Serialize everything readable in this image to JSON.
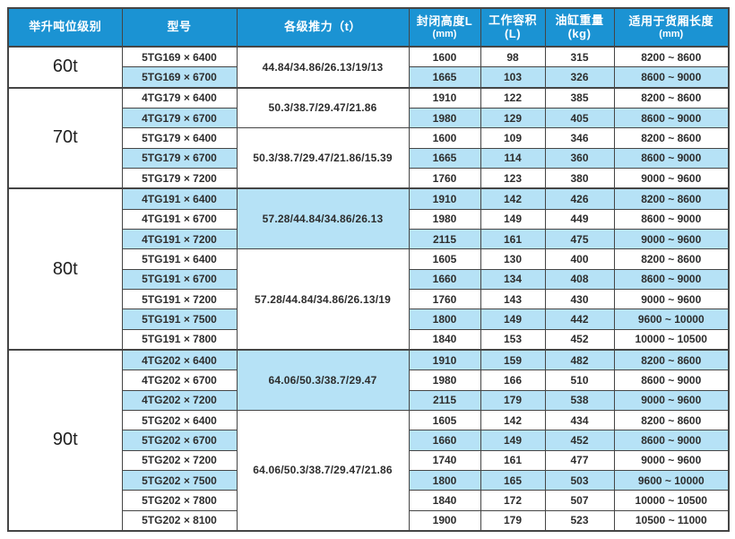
{
  "colors": {
    "header_bg": "#1b93d3",
    "header_text": "#ffffff",
    "row_highlight": "#b6e2f6",
    "border": "#454545",
    "text": "#2d2d2d",
    "page_bg": "#ffffff"
  },
  "table": {
    "columns": [
      {
        "label": "举升吨位级别",
        "sub": ""
      },
      {
        "label": "型号",
        "sub": ""
      },
      {
        "label": "各级推力（t）",
        "sub": ""
      },
      {
        "label": "封闭高度L",
        "sub": "(mm)"
      },
      {
        "label": "工作容积(L)",
        "sub": ""
      },
      {
        "label": "油缸重量(kg)",
        "sub": ""
      },
      {
        "label": "适用于货厢长度",
        "sub": "(mm)"
      }
    ],
    "groups": [
      {
        "tonnage": "60t",
        "subgroups": [
          {
            "thrust": "44.84/34.86/26.13/19/13",
            "thrust_highlight": false,
            "rows": [
              {
                "model": "5TG169 × 6400",
                "highlight": false,
                "values": [
                  "1600",
                  "98",
                  "315",
                  "8200 ~ 8600"
                ]
              },
              {
                "model": "5TG169 × 6700",
                "highlight": true,
                "values": [
                  "1665",
                  "103",
                  "326",
                  "8600 ~ 9000"
                ]
              }
            ]
          }
        ]
      },
      {
        "tonnage": "70t",
        "subgroups": [
          {
            "thrust": "50.3/38.7/29.47/21.86",
            "thrust_highlight": false,
            "rows": [
              {
                "model": "4TG179 × 6400",
                "highlight": false,
                "values": [
                  "1910",
                  "122",
                  "385",
                  "8200 ~ 8600"
                ]
              },
              {
                "model": "4TG179 × 6700",
                "highlight": true,
                "values": [
                  "1980",
                  "129",
                  "405",
                  "8600 ~ 9000"
                ]
              }
            ]
          },
          {
            "thrust": "50.3/38.7/29.47/21.86/15.39",
            "thrust_highlight": false,
            "rows": [
              {
                "model": "5TG179 × 6400",
                "highlight": false,
                "values": [
                  "1600",
                  "109",
                  "346",
                  "8200 ~ 8600"
                ]
              },
              {
                "model": "5TG179 × 6700",
                "highlight": true,
                "values": [
                  "1665",
                  "114",
                  "360",
                  "8600 ~ 9000"
                ]
              },
              {
                "model": "5TG179 × 7200",
                "highlight": false,
                "values": [
                  "1760",
                  "123",
                  "380",
                  "9000 ~ 9600"
                ]
              }
            ]
          }
        ]
      },
      {
        "tonnage": "80t",
        "subgroups": [
          {
            "thrust": "57.28/44.84/34.86/26.13",
            "thrust_highlight": true,
            "rows": [
              {
                "model": "4TG191 × 6400",
                "highlight": true,
                "values": [
                  "1910",
                  "142",
                  "426",
                  "8200 ~ 8600"
                ]
              },
              {
                "model": "4TG191 × 6700",
                "highlight": false,
                "values": [
                  "1980",
                  "149",
                  "449",
                  "8600 ~ 9000"
                ]
              },
              {
                "model": "4TG191 × 7200",
                "highlight": true,
                "values": [
                  "2115",
                  "161",
                  "475",
                  "9000 ~ 9600"
                ]
              }
            ]
          },
          {
            "thrust": "57.28/44.84/34.86/26.13/19",
            "thrust_highlight": false,
            "rows": [
              {
                "model": "5TG191 × 6400",
                "highlight": false,
                "values": [
                  "1605",
                  "130",
                  "400",
                  "8200 ~ 8600"
                ]
              },
              {
                "model": "5TG191 × 6700",
                "highlight": true,
                "values": [
                  "1660",
                  "134",
                  "408",
                  "8600 ~ 9000"
                ]
              },
              {
                "model": "5TG191 × 7200",
                "highlight": false,
                "values": [
                  "1760",
                  "143",
                  "430",
                  "9000 ~ 9600"
                ]
              },
              {
                "model": "5TG191 × 7500",
                "highlight": true,
                "values": [
                  "1800",
                  "149",
                  "442",
                  "9600 ~ 10000"
                ]
              },
              {
                "model": "5TG191 × 7800",
                "highlight": false,
                "values": [
                  "1840",
                  "153",
                  "452",
                  "10000 ~ 10500"
                ]
              }
            ]
          }
        ]
      },
      {
        "tonnage": "90t",
        "subgroups": [
          {
            "thrust": "64.06/50.3/38.7/29.47",
            "thrust_highlight": true,
            "rows": [
              {
                "model": "4TG202 × 6400",
                "highlight": true,
                "values": [
                  "1910",
                  "159",
                  "482",
                  "8200 ~ 8600"
                ]
              },
              {
                "model": "4TG202 × 6700",
                "highlight": false,
                "values": [
                  "1980",
                  "166",
                  "510",
                  "8600 ~ 9000"
                ]
              },
              {
                "model": "4TG202 × 7200",
                "highlight": true,
                "values": [
                  "2115",
                  "179",
                  "538",
                  "9000 ~ 9600"
                ]
              }
            ]
          },
          {
            "thrust": "64.06/50.3/38.7/29.47/21.86",
            "thrust_highlight": false,
            "rows": [
              {
                "model": "5TG202 × 6400",
                "highlight": false,
                "values": [
                  "1605",
                  "142",
                  "434",
                  "8200 ~ 8600"
                ]
              },
              {
                "model": "5TG202 × 6700",
                "highlight": true,
                "values": [
                  "1660",
                  "149",
                  "452",
                  "8600 ~ 9000"
                ]
              },
              {
                "model": "5TG202 × 7200",
                "highlight": false,
                "values": [
                  "1740",
                  "161",
                  "477",
                  "9000 ~ 9600"
                ]
              },
              {
                "model": "5TG202 × 7500",
                "highlight": true,
                "values": [
                  "1800",
                  "165",
                  "503",
                  "9600 ~ 10000"
                ]
              },
              {
                "model": "5TG202 × 7800",
                "highlight": false,
                "values": [
                  "1840",
                  "172",
                  "507",
                  "10000 ~ 10500"
                ]
              },
              {
                "model": "5TG202 × 8100",
                "highlight": false,
                "values": [
                  "1900",
                  "179",
                  "523",
                  "10500 ~ 11000"
                ]
              }
            ]
          }
        ]
      }
    ]
  }
}
